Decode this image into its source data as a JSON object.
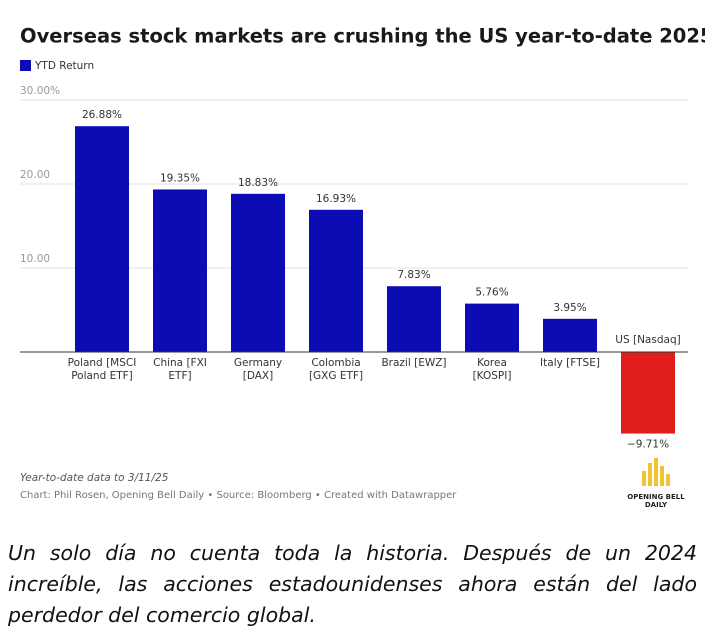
{
  "chart_data": {
    "type": "bar",
    "title": "Overseas stock markets are crushing the US year-to-date 2025",
    "categories": [
      "Poland [MSCI\nPoland ETF]",
      "China [FXI\nETF]",
      "Germany\n[DAX]",
      "Colombia\n[GXG ETF]",
      "Brazil [EWZ]",
      "Korea\n[KOSPI]",
      "Italy [FTSE]",
      "US [Nasdaq]"
    ],
    "series": [
      {
        "name": "YTD Return",
        "color": "#0c0cb4",
        "values": [
          26.88,
          19.35,
          18.83,
          16.93,
          7.83,
          5.76,
          3.95,
          -9.71
        ],
        "value_labels": [
          "26.88%",
          "19.35%",
          "18.83%",
          "16.93%",
          "7.83%",
          "5.76%",
          "3.95%",
          "−9.71%"
        ],
        "colors": [
          "#0c0cb4",
          "#0c0cb4",
          "#0c0cb4",
          "#0c0cb4",
          "#0c0cb4",
          "#0c0cb4",
          "#0c0cb4",
          "#e01f1c"
        ]
      }
    ],
    "ylim": [
      -12,
      30
    ],
    "yticks": [
      {
        "value": 30,
        "label": "30.00%"
      },
      {
        "value": 20,
        "label": "20.00"
      },
      {
        "value": 10,
        "label": "10.00"
      }
    ],
    "grid": true,
    "legend": "top-left",
    "note": "Year-to-date data to 3/11/25",
    "source": "Chart: Phil Rosen, Opening Bell Daily • Source: Bloomberg • Created with Datawrapper",
    "logo": "OPENING BELL\nDAILY"
  },
  "caption": "Un solo día no cuenta toda la historia. Después de un 2024 increíble, las acciones estadounidenses ahora están del lado perdedor del comercio global."
}
